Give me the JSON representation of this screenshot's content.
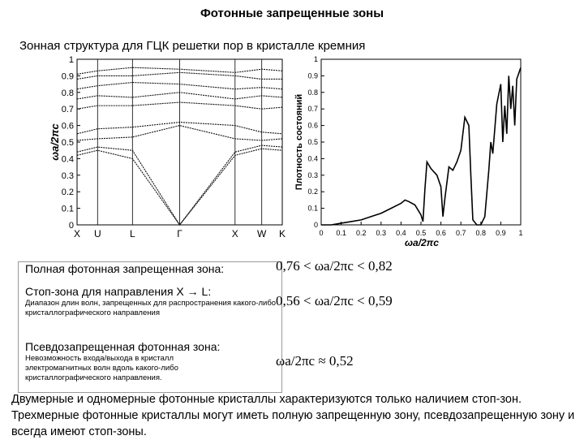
{
  "page": {
    "title": "Фотонные запрещенные зоны",
    "subtitle": "Зонная структура для ГЦК решетки пор в кристалле кремния"
  },
  "chart_data": [
    {
      "type": "line",
      "xlabel": "",
      "ylabel": "ωa/2πc",
      "ylim": [
        0,
        1
      ],
      "y_ticks": [
        "0",
        "0.1",
        "0.2",
        "0.3",
        "0.4",
        "0.5",
        "0.6",
        "0.7",
        "0.8",
        "0.9",
        "1"
      ],
      "x_points": [
        "X",
        "U",
        "L",
        "Γ",
        "X",
        "W",
        "K"
      ],
      "x_positions": [
        0,
        0.1,
        0.27,
        0.5,
        0.77,
        0.9,
        1.0
      ],
      "series": [
        {
          "x": [
            0,
            0.1,
            0.27,
            0.5,
            0.77,
            0.9,
            1.0
          ],
          "y": [
            0.42,
            0.45,
            0.4,
            0.0,
            0.42,
            0.46,
            0.45
          ]
        },
        {
          "x": [
            0,
            0.1,
            0.27,
            0.5,
            0.77,
            0.9,
            1.0
          ],
          "y": [
            0.44,
            0.47,
            0.45,
            0.0,
            0.44,
            0.48,
            0.47
          ]
        },
        {
          "x": [
            0,
            0.1,
            0.27,
            0.5,
            0.77,
            0.9,
            1.0
          ],
          "y": [
            0.51,
            0.52,
            0.53,
            0.6,
            0.52,
            0.51,
            0.52
          ]
        },
        {
          "x": [
            0,
            0.1,
            0.27,
            0.5,
            0.77,
            0.9,
            1.0
          ],
          "y": [
            0.55,
            0.58,
            0.59,
            0.62,
            0.6,
            0.56,
            0.55
          ]
        },
        {
          "x": [
            0,
            0.1,
            0.27,
            0.5,
            0.77,
            0.9,
            1.0
          ],
          "y": [
            0.7,
            0.72,
            0.72,
            0.74,
            0.72,
            0.7,
            0.71
          ]
        },
        {
          "x": [
            0,
            0.1,
            0.27,
            0.5,
            0.77,
            0.9,
            1.0
          ],
          "y": [
            0.76,
            0.78,
            0.77,
            0.8,
            0.76,
            0.78,
            0.77
          ]
        },
        {
          "x": [
            0,
            0.1,
            0.27,
            0.5,
            0.77,
            0.9,
            1.0
          ],
          "y": [
            0.82,
            0.84,
            0.86,
            0.85,
            0.82,
            0.83,
            0.82
          ]
        },
        {
          "x": [
            0,
            0.1,
            0.27,
            0.5,
            0.77,
            0.9,
            1.0
          ],
          "y": [
            0.88,
            0.9,
            0.9,
            0.92,
            0.9,
            0.88,
            0.88
          ]
        },
        {
          "x": [
            0,
            0.1,
            0.27,
            0.5,
            0.77,
            0.9,
            1.0
          ],
          "y": [
            0.91,
            0.93,
            0.95,
            0.94,
            0.92,
            0.94,
            0.93
          ]
        }
      ]
    },
    {
      "type": "line",
      "xlabel": "ωa/2πc",
      "ylabel": "Плотность состояний",
      "xlim": [
        0,
        1
      ],
      "ylim": [
        0,
        1
      ],
      "x_ticks": [
        "0",
        "0.1",
        "0.2",
        "0.3",
        "0.4",
        "0.5",
        "0.6",
        "0.7",
        "0.8",
        "0.9",
        "1"
      ],
      "y_ticks": [
        "0",
        "0.1",
        "0.2",
        "0.3",
        "0.4",
        "0.5",
        "0.6",
        "0.7",
        "0.8",
        "0.9",
        "1"
      ],
      "series": [
        {
          "x": [
            0,
            0.05,
            0.1,
            0.15,
            0.2,
            0.25,
            0.3,
            0.35,
            0.4,
            0.42,
            0.44,
            0.47,
            0.5,
            0.51,
            0.52,
            0.53,
            0.55,
            0.58,
            0.6,
            0.61,
            0.62,
            0.64,
            0.66,
            0.68,
            0.7,
            0.72,
            0.74,
            0.75,
            0.76,
            0.78,
            0.8,
            0.82,
            0.84,
            0.85,
            0.86,
            0.88,
            0.9,
            0.91,
            0.92,
            0.93,
            0.94,
            0.95,
            0.96,
            0.97,
            0.98,
            1.0
          ],
          "y": [
            0,
            0.0,
            0.01,
            0.02,
            0.03,
            0.05,
            0.07,
            0.1,
            0.13,
            0.15,
            0.14,
            0.12,
            0.06,
            0.02,
            0.22,
            0.38,
            0.34,
            0.3,
            0.23,
            0.05,
            0.16,
            0.35,
            0.33,
            0.38,
            0.45,
            0.65,
            0.6,
            0.3,
            0.03,
            0.0,
            0.0,
            0.05,
            0.33,
            0.5,
            0.43,
            0.73,
            0.85,
            0.5,
            0.72,
            0.55,
            0.9,
            0.7,
            0.84,
            0.6,
            0.88,
            0.95
          ]
        }
      ]
    }
  ],
  "panel": {
    "full_gap_label": "Полная фотонная запрещенная зона:",
    "full_gap_formula": "0,76 < ωa/2πc < 0,82",
    "stop_zone_label": "Стоп-зона для направления X → L:",
    "stop_zone_note": "Диапазон длин волн, запрещенных для распространения какого-либо кристаллографического направления",
    "stop_zone_formula": "0,56 < ωa/2πc < 0,59",
    "pseudo_gap_label": "Псевдозапрещенная фотонная зона:",
    "pseudo_gap_note": "Невозможность входа/выхода в кристалл электромагнитных волн вдоль какого-либо кристаллографического направления.",
    "pseudo_gap_formula": "ωa/2πc ≈ 0,52"
  },
  "bottom_text": "Двумерные и одномерные фотонные кристаллы характеризуются только наличием стоп-зон. Трехмерные фотонные кристаллы могут иметь полную запрещенную зону, псевдозапрещенную зону и всегда имеют стоп-зоны."
}
